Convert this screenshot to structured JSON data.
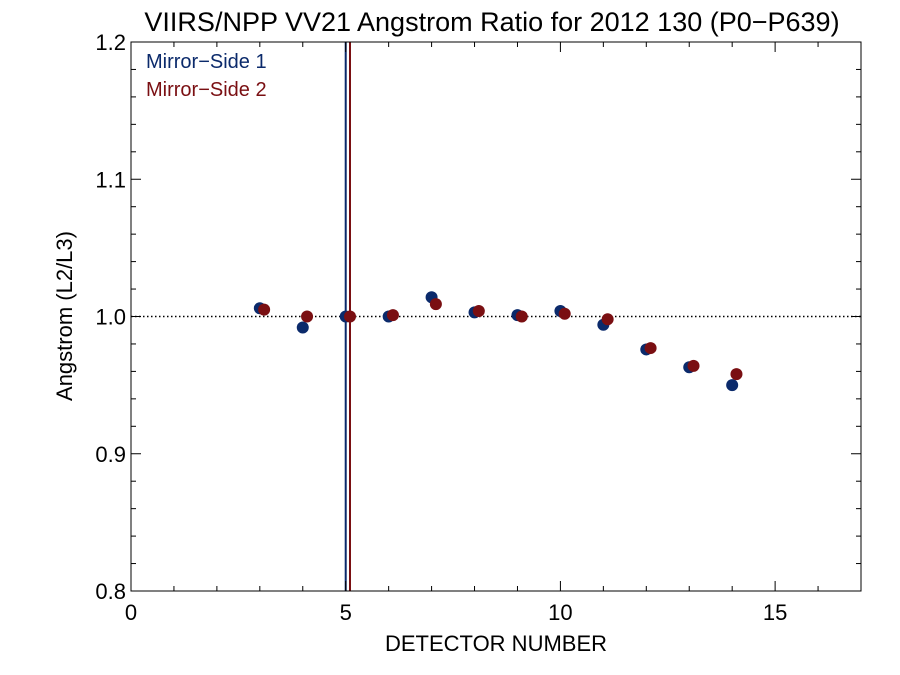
{
  "chart_data": {
    "type": "scatter",
    "title": "VIIRS/NPP VV21 Angstrom Ratio for 2012 130 (P0−P639)",
    "xlabel": "DETECTOR NUMBER",
    "ylabel": "Angstrom (L2/L3)",
    "xlim": [
      0,
      17
    ],
    "ylim": [
      0.8,
      1.2
    ],
    "x_ticks": [
      0,
      5,
      10,
      15
    ],
    "y_ticks": [
      0.8,
      0.9,
      1.0,
      1.1,
      1.2
    ],
    "x_tick_labels": [
      "0",
      "5",
      "10",
      "15"
    ],
    "y_tick_labels": [
      "0.8",
      "0.9",
      "1.0",
      "1.1",
      "1.2"
    ],
    "x_minor_step": 1,
    "y_minor_step": 0.02,
    "reference_line": {
      "y": 1.0,
      "style": "dotted"
    },
    "vertical_lines": [
      {
        "x": 5.0,
        "color": "#0b2a6b"
      },
      {
        "x": 5.1,
        "color": "#7a0f12"
      }
    ],
    "legend_position": "top-left",
    "series": [
      {
        "name": "Mirror−Side 1",
        "color": "#0b2a6b",
        "x": [
          3,
          4,
          5,
          6,
          7,
          8,
          9,
          10,
          11,
          12,
          13,
          14
        ],
        "y": [
          1.006,
          0.992,
          1.0,
          1.0,
          1.014,
          1.003,
          1.001,
          1.004,
          0.994,
          0.976,
          0.963,
          0.95
        ]
      },
      {
        "name": "Mirror−Side 2",
        "color": "#7a0f12",
        "x": [
          3.1,
          4.1,
          5.1,
          6.1,
          7.1,
          8.1,
          9.1,
          10.1,
          11.1,
          12.1,
          13.1,
          14.1
        ],
        "y": [
          1.005,
          1.0,
          1.0,
          1.001,
          1.009,
          1.004,
          1.0,
          1.002,
          0.998,
          0.977,
          0.964,
          0.958
        ]
      }
    ]
  }
}
